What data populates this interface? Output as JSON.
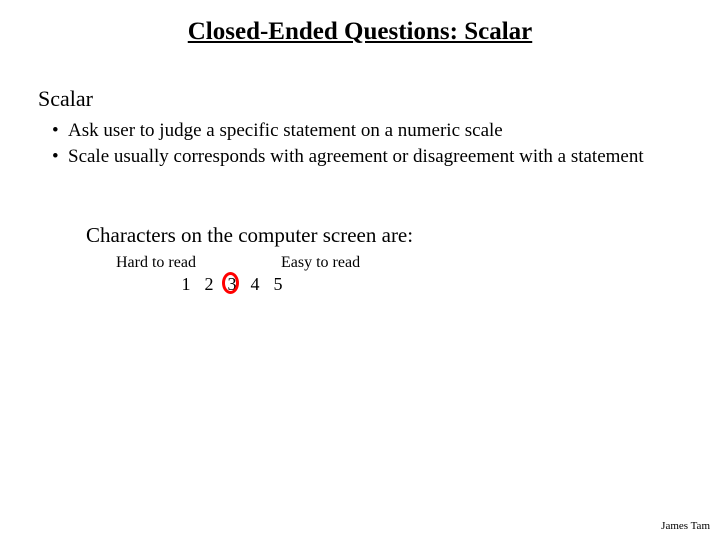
{
  "title": "Closed-Ended Questions: Scalar",
  "subheading": "Scalar",
  "bullets": [
    "Ask user to judge a specific statement on a numeric scale",
    "Scale usually corresponds with agreement or disagreement with a statement"
  ],
  "example": {
    "prompt": "Characters on the computer screen are:",
    "anchor_left": "Hard to read",
    "anchor_right": "Easy to read",
    "scale_values": [
      "1",
      "2",
      "3",
      "4",
      "5"
    ],
    "circled_index": 2,
    "circle_color": "#ff0000"
  },
  "footer": "James Tam",
  "colors": {
    "text": "#000000",
    "background": "#ffffff"
  }
}
